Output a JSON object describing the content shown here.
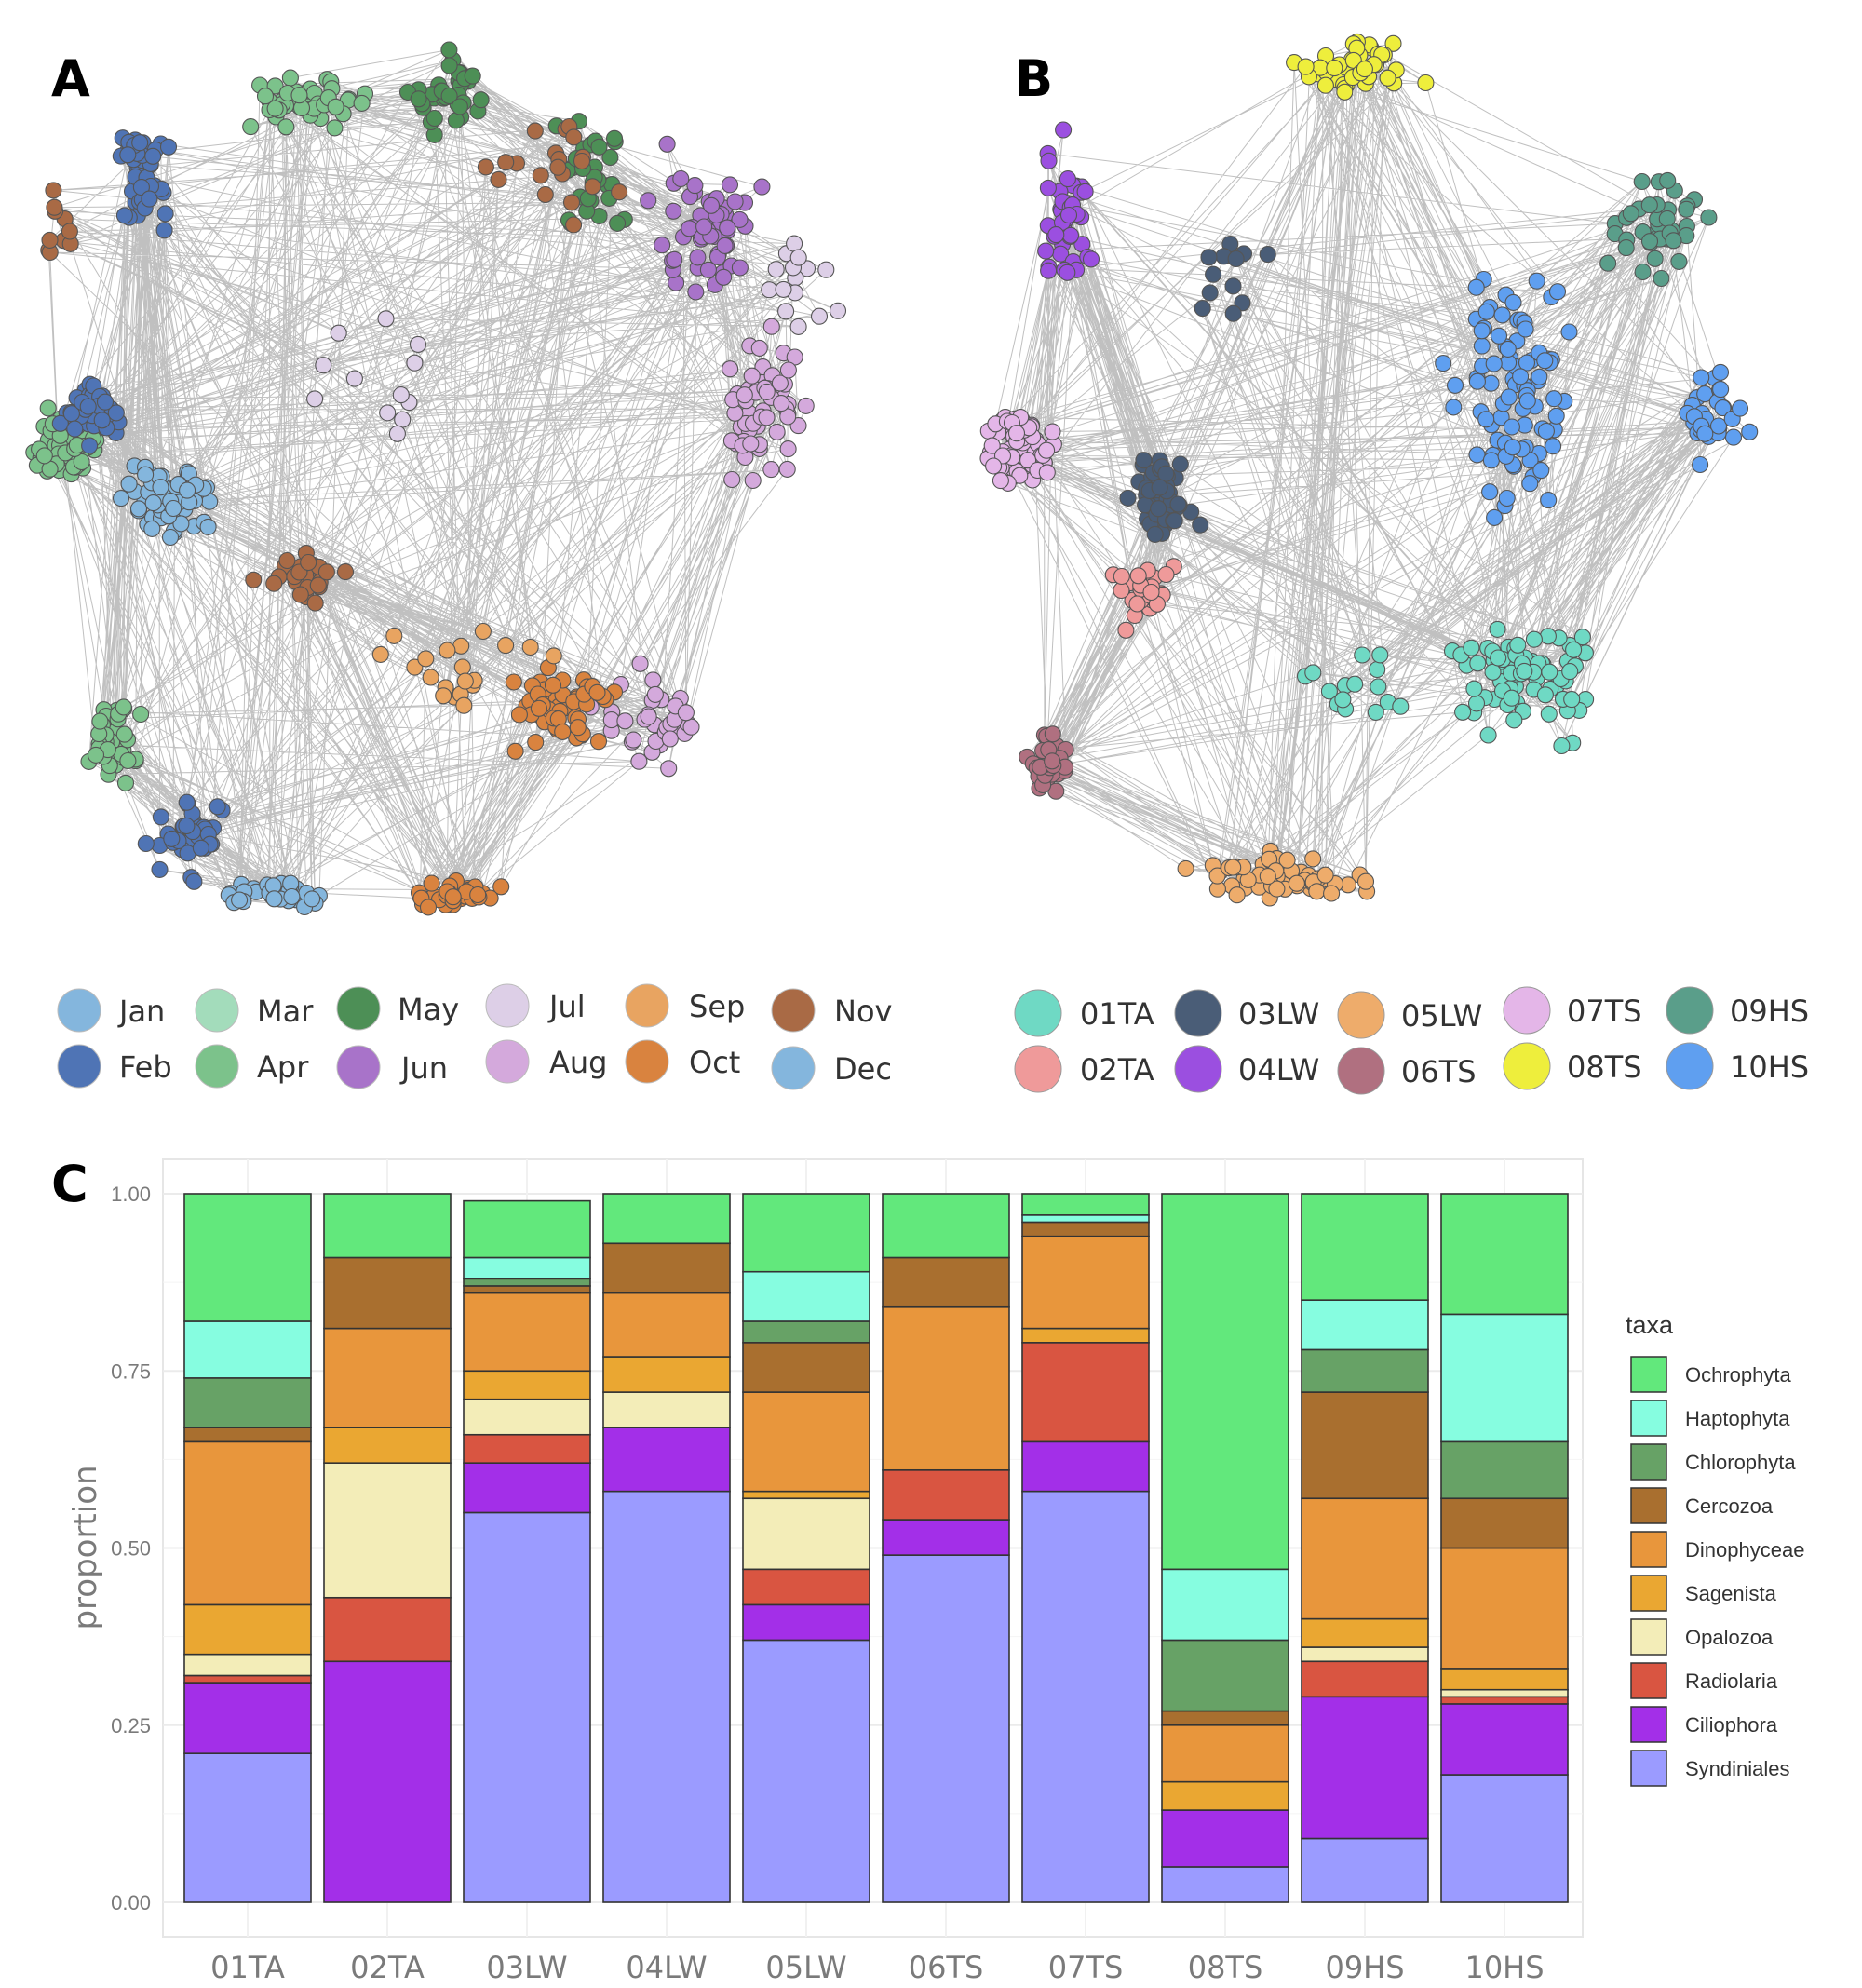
{
  "panels": {
    "a": "A",
    "b": "B",
    "c": "C"
  },
  "legend_months": [
    {
      "label": "Jan",
      "color": "#84b6dd"
    },
    {
      "label": "Feb",
      "color": "#4f74b5"
    },
    {
      "label": "Mar",
      "color": "#a3dcbb"
    },
    {
      "label": "Apr",
      "color": "#7cc28b"
    },
    {
      "label": "May",
      "color": "#4d8f56"
    },
    {
      "label": "Jun",
      "color": "#a873c9"
    },
    {
      "label": "Jul",
      "color": "#ddcfe7"
    },
    {
      "label": "Aug",
      "color": "#d4a9dc"
    },
    {
      "label": "Sep",
      "color": "#e8a461"
    },
    {
      "label": "Oct",
      "color": "#d9833f"
    },
    {
      "label": "Nov",
      "color": "#a96a45"
    },
    {
      "label": "Dec",
      "color": "#84b6dd"
    }
  ],
  "legend_modules": [
    {
      "label": "01TA",
      "color": "#6fd9c4"
    },
    {
      "label": "02TA",
      "color": "#ef9a9a"
    },
    {
      "label": "03LW",
      "color": "#4a5d77"
    },
    {
      "label": "04LW",
      "color": "#9b4fe0"
    },
    {
      "label": "05LW",
      "color": "#eeac6b"
    },
    {
      "label": "06TS",
      "color": "#b07080"
    },
    {
      "label": "07TS",
      "color": "#e4b6e8"
    },
    {
      "label": "08TS",
      "color": "#eeee3c"
    },
    {
      "label": "09HS",
      "color": "#5a9e8a"
    },
    {
      "label": "10HS",
      "color": "#5f9ff0"
    }
  ],
  "chart_data": {
    "type": "bar",
    "stacked": true,
    "ylabel": "proportion",
    "xlabel": "",
    "ylim": [
      0,
      1
    ],
    "yticks": [
      "0.00",
      "0.25",
      "0.50",
      "0.75",
      "1.00"
    ],
    "categories": [
      "01TA",
      "02TA",
      "03LW",
      "04LW",
      "05LW",
      "06TS",
      "07TS",
      "08TS",
      "09HS",
      "10HS"
    ],
    "legend_title": "taxa",
    "series": [
      {
        "name": "Syndiniales",
        "color": "#9b9bff",
        "values": [
          0.21,
          0.0,
          0.55,
          0.58,
          0.37,
          0.49,
          0.58,
          0.05,
          0.09,
          0.18
        ]
      },
      {
        "name": "Ciliophora",
        "color": "#a32fe8",
        "values": [
          0.1,
          0.34,
          0.07,
          0.09,
          0.05,
          0.05,
          0.07,
          0.08,
          0.2,
          0.1
        ]
      },
      {
        "name": "Radiolaria",
        "color": "#d95541",
        "values": [
          0.01,
          0.09,
          0.04,
          0.0,
          0.05,
          0.07,
          0.14,
          0.0,
          0.05,
          0.01
        ]
      },
      {
        "name": "Opalozoa",
        "color": "#f3edb8",
        "values": [
          0.03,
          0.19,
          0.05,
          0.05,
          0.1,
          0.0,
          0.0,
          0.0,
          0.02,
          0.01
        ]
      },
      {
        "name": "Sagenista",
        "color": "#eaa732",
        "values": [
          0.07,
          0.05,
          0.04,
          0.05,
          0.01,
          0.0,
          0.02,
          0.04,
          0.04,
          0.03
        ]
      },
      {
        "name": "Dinophyceae",
        "color": "#e8963c",
        "values": [
          0.23,
          0.14,
          0.11,
          0.09,
          0.14,
          0.23,
          0.13,
          0.08,
          0.17,
          0.17
        ]
      },
      {
        "name": "Cercozoa",
        "color": "#a96f2f",
        "values": [
          0.02,
          0.1,
          0.01,
          0.07,
          0.07,
          0.07,
          0.02,
          0.02,
          0.15,
          0.07
        ]
      },
      {
        "name": "Chlorophyta",
        "color": "#67a266",
        "values": [
          0.07,
          0.0,
          0.01,
          0.0,
          0.03,
          0.0,
          0.0,
          0.1,
          0.06,
          0.08
        ]
      },
      {
        "name": "Haptophyta",
        "color": "#86fde0",
        "values": [
          0.08,
          0.0,
          0.03,
          0.0,
          0.07,
          0.0,
          0.01,
          0.1,
          0.07,
          0.18
        ]
      },
      {
        "name": "Ochrophyta",
        "color": "#62e87c",
        "values": [
          0.18,
          0.09,
          0.08,
          0.07,
          0.11,
          0.09,
          0.03,
          0.53,
          0.15,
          0.17
        ]
      }
    ]
  }
}
